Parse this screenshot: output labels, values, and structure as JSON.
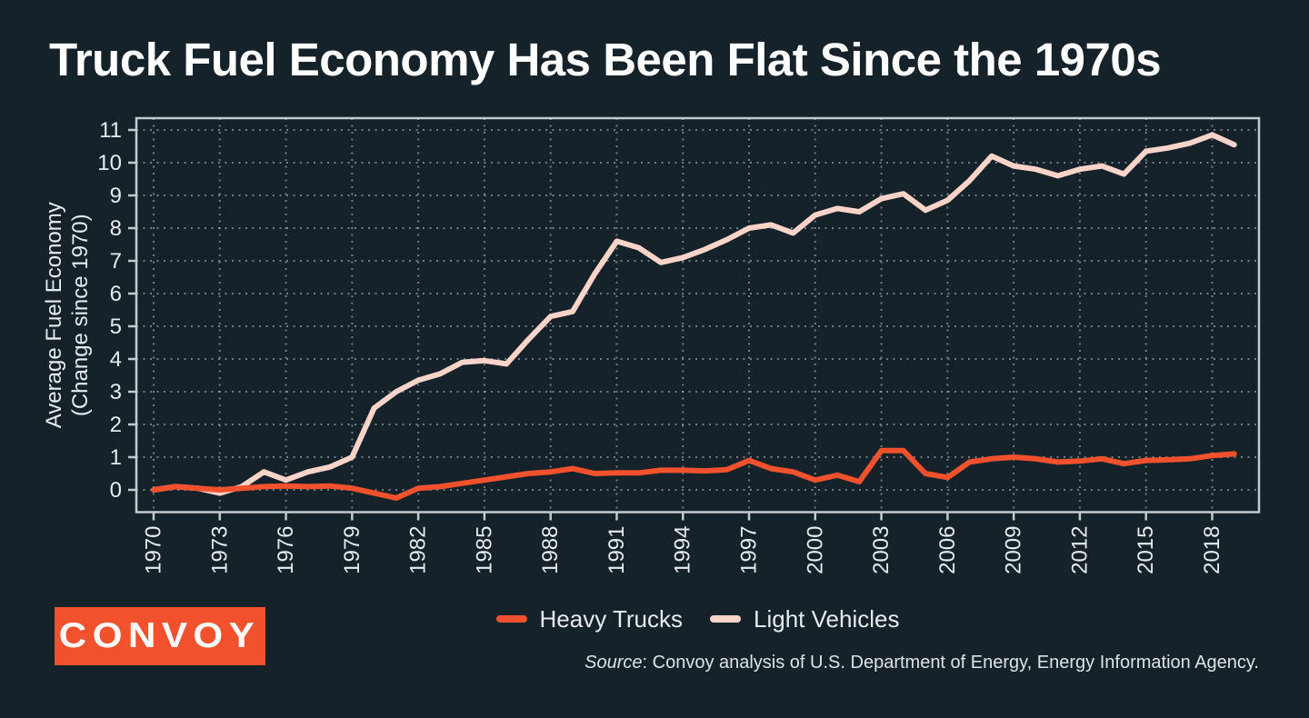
{
  "title": "Truck Fuel Economy Has Been Flat Since the 1970s",
  "chart_data": {
    "type": "line",
    "x": [
      1970,
      1971,
      1972,
      1973,
      1974,
      1975,
      1976,
      1977,
      1978,
      1979,
      1980,
      1981,
      1982,
      1983,
      1984,
      1985,
      1986,
      1987,
      1988,
      1989,
      1990,
      1991,
      1992,
      1993,
      1994,
      1995,
      1996,
      1997,
      1998,
      1999,
      2000,
      2001,
      2002,
      2003,
      2004,
      2005,
      2006,
      2007,
      2008,
      2009,
      2010,
      2011,
      2012,
      2013,
      2014,
      2015,
      2016,
      2017,
      2018,
      2019
    ],
    "series": [
      {
        "name": "Heavy Trucks",
        "color": "#f2512d",
        "values": [
          0,
          0.1,
          0.05,
          0,
          0.05,
          0.1,
          0.12,
          0.1,
          0.12,
          0.05,
          -0.1,
          -0.25,
          0.05,
          0.1,
          0.2,
          0.3,
          0.4,
          0.5,
          0.55,
          0.65,
          0.5,
          0.52,
          0.52,
          0.6,
          0.6,
          0.58,
          0.62,
          0.9,
          0.65,
          0.55,
          0.3,
          0.45,
          0.25,
          1.2,
          1.2,
          0.5,
          0.38,
          0.85,
          0.95,
          1.0,
          0.95,
          0.85,
          0.88,
          0.95,
          0.8,
          0.9,
          0.92,
          0.95,
          1.05,
          1.1
        ]
      },
      {
        "name": "Light Vehicles",
        "color": "#fad3c9",
        "values": [
          0,
          0.1,
          0.05,
          -0.1,
          0.1,
          0.55,
          0.3,
          0.55,
          0.7,
          1.0,
          2.5,
          3.0,
          3.35,
          3.55,
          3.9,
          3.95,
          3.85,
          4.6,
          5.3,
          5.45,
          6.6,
          7.6,
          7.4,
          6.95,
          7.1,
          7.35,
          7.65,
          8.0,
          8.1,
          7.85,
          8.4,
          8.6,
          8.5,
          8.9,
          9.05,
          8.55,
          8.85,
          9.45,
          10.2,
          9.9,
          9.8,
          9.6,
          9.8,
          9.9,
          9.65,
          10.35,
          10.45,
          10.6,
          10.85,
          10.55
        ]
      }
    ],
    "ylabel_line1": "Average Fuel Economy",
    "ylabel_line2": "(Change since 1970)",
    "y_ticks": [
      0,
      1,
      2,
      3,
      4,
      5,
      6,
      7,
      8,
      9,
      10,
      11
    ],
    "x_tick_years": [
      1970,
      1973,
      1976,
      1979,
      1982,
      1985,
      1988,
      1991,
      1994,
      1997,
      2000,
      2003,
      2006,
      2009,
      2012,
      2015,
      2018
    ],
    "ylim": [
      -0.67,
      11.36
    ],
    "grid": "dotted-both",
    "legend_position": "bottom-center"
  },
  "legend": {
    "items": [
      {
        "label": "Heavy Trucks",
        "color": "#f2512d"
      },
      {
        "label": "Light Vehicles",
        "color": "#fad3c9"
      }
    ]
  },
  "footer": {
    "logo_text": "CONVOY",
    "source_label": "Source",
    "source_rest": ": Convoy analysis of U.S. Department of Energy, Energy Information Agency."
  },
  "colors": {
    "background": "#16222a",
    "axis": "#c2cbce",
    "grid": "#cdd6d9",
    "text": "#e6ebee",
    "title": "#ffffff",
    "heavy_trucks": "#f2512d",
    "light_vehicles": "#fad3c9",
    "logo_background": "#f2512d"
  }
}
